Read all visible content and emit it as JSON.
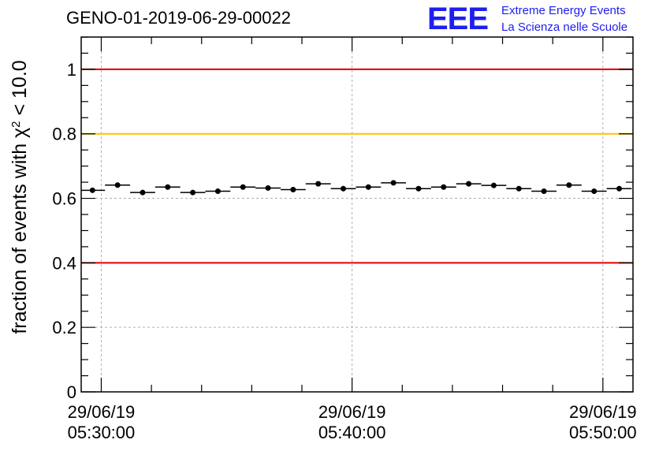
{
  "title": "GENO-01-2019-06-29-00022",
  "logo": {
    "mark": "EEE",
    "line1": "Extreme Energy Events",
    "line2": "La Scienza nelle Scuole",
    "color": "#1e1ef0"
  },
  "chart_data": {
    "type": "scatter",
    "title": "GENO-01-2019-06-29-00022",
    "ylabel_prefix": "fraction of events with ",
    "ylabel_symbol": "χ",
    "ylabel_sup": "2",
    "ylabel_suffix": " < 10.0",
    "xlabel": "",
    "x_unit": "minutes after 29/06/19 05:30:00",
    "xlim": [
      -0.8,
      21.2
    ],
    "ylim": [
      0,
      1.1
    ],
    "grid": true,
    "y_ticks": [
      {
        "value": 0,
        "label": "0"
      },
      {
        "value": 0.2,
        "label": "0.2"
      },
      {
        "value": 0.4,
        "label": "0.4"
      },
      {
        "value": 0.6,
        "label": "0.6"
      },
      {
        "value": 0.8,
        "label": "0.8"
      },
      {
        "value": 1.0,
        "label": "1"
      }
    ],
    "x_ticks": [
      {
        "value": 0,
        "date": "29/06/19",
        "time": "05:30:00"
      },
      {
        "value": 10,
        "date": "29/06/19",
        "time": "05:40:00"
      },
      {
        "value": 20,
        "date": "29/06/19",
        "time": "05:50:00"
      }
    ],
    "x_minor_ticks": [
      2,
      4,
      6,
      8,
      12,
      14,
      16,
      18
    ],
    "reference_lines": [
      {
        "value": 1.0,
        "color": "#e00000"
      },
      {
        "value": 0.8,
        "color": "#ffc000"
      },
      {
        "value": 0.4,
        "color": "#e00000"
      }
    ],
    "bin_width_min": 1.0,
    "series": [
      {
        "name": "fraction",
        "x": [
          -0.35,
          0.65,
          1.65,
          2.65,
          3.65,
          4.65,
          5.65,
          6.65,
          7.65,
          8.65,
          9.65,
          10.65,
          11.65,
          12.65,
          13.65,
          14.65,
          15.65,
          16.65,
          17.65,
          18.65,
          19.65,
          20.65
        ],
        "y": [
          0.625,
          0.641,
          0.618,
          0.635,
          0.618,
          0.622,
          0.635,
          0.632,
          0.627,
          0.645,
          0.63,
          0.635,
          0.648,
          0.63,
          0.635,
          0.645,
          0.64,
          0.63,
          0.622,
          0.641,
          0.622,
          0.63
        ]
      }
    ]
  }
}
